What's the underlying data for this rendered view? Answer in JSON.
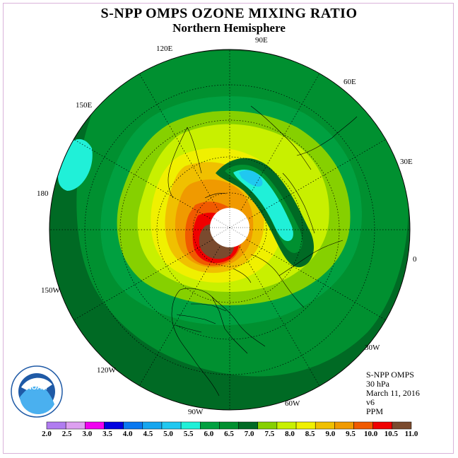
{
  "title": "S-NPP OMPS OZONE MIXING RATIO",
  "subtitle": "Northern Hemisphere",
  "info": {
    "instrument": "S-NPP OMPS",
    "level": "30 hPa",
    "date": "March 11, 2016",
    "version": "v6",
    "units": "PPM"
  },
  "longitude_labels": [
    "90E",
    "60E",
    "30E",
    "0",
    "30W",
    "60W",
    "90W",
    "120W",
    "150W",
    "180",
    "150E",
    "120E"
  ],
  "logo": {
    "text": "NOAA",
    "ring_text": "NATIONAL OCEANIC AND ATMOSPHERIC ADMINISTRATION · U.S. DEPARTMENT OF COMMERCE"
  },
  "colorbar": {
    "ticks": [
      "2.0",
      "2.5",
      "3.0",
      "3.5",
      "4.0",
      "4.5",
      "5.0",
      "5.5",
      "6.0",
      "6.5",
      "7.0",
      "7.5",
      "8.0",
      "8.5",
      "9.0",
      "9.5",
      "10.0",
      "10.5",
      "11.0"
    ],
    "colors": [
      "#b07cf0",
      "#dda0f0",
      "#f000f0",
      "#0000e0",
      "#0a78f0",
      "#16a6ef",
      "#20c8f0",
      "#20f0d8",
      "#00a040",
      "#009030",
      "#006a24",
      "#86d000",
      "#c8f000",
      "#f0f000",
      "#f0c000",
      "#f09a00",
      "#f05a00",
      "#f00000",
      "#7a4a2e"
    ]
  }
}
